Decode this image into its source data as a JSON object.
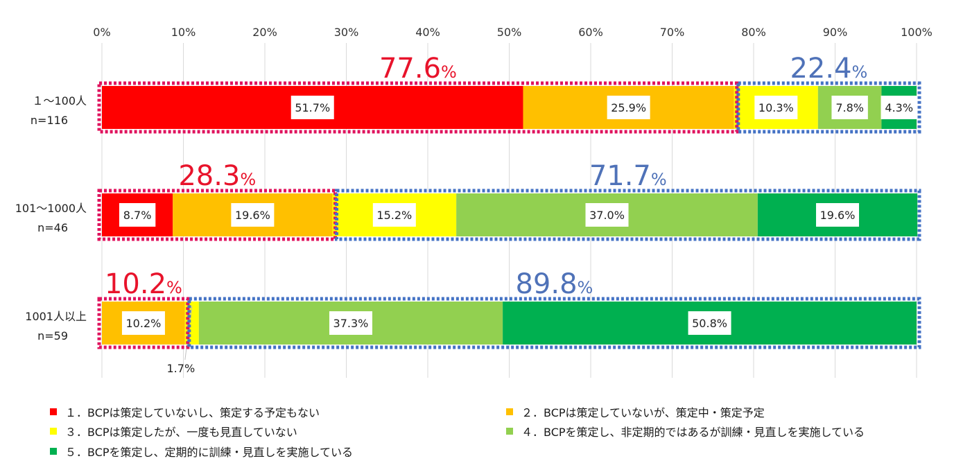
{
  "chart_data": {
    "type": "bar",
    "orientation": "horizontal",
    "stacked": "percent",
    "xlim": [
      0,
      100
    ],
    "x_ticks": [
      "0%",
      "10%",
      "20%",
      "30%",
      "40%",
      "50%",
      "60%",
      "70%",
      "80%",
      "90%",
      "100%"
    ],
    "grid": true,
    "legend_position": "bottom",
    "categories": [
      {
        "label": "１～100人",
        "n": "n=116"
      },
      {
        "label": "101～1000人",
        "n": "n=46"
      },
      {
        "label": "1001人以上",
        "n": "n=59"
      }
    ],
    "series": [
      {
        "name": "１．BCPは策定していないし、策定する予定もない",
        "color": "#ff0000",
        "values": [
          51.7,
          8.7,
          0.0
        ],
        "labels": [
          "51.7%",
          "8.7%",
          ""
        ]
      },
      {
        "name": "２．BCPは策定していないが、策定中・策定予定",
        "color": "#ffc000",
        "values": [
          25.9,
          19.6,
          10.2
        ],
        "labels": [
          "25.9%",
          "19.6%",
          "10.2%"
        ]
      },
      {
        "name": "３．BCPは策定したが、一度も見直していない",
        "color": "#ffff00",
        "values": [
          10.3,
          15.2,
          1.7
        ],
        "labels": [
          "10.3%",
          "15.2%",
          "1.7%"
        ]
      },
      {
        "name": "４．BCPを策定し、非定期的ではあるが訓練・見直しを実施している",
        "color": "#92d050",
        "values": [
          7.8,
          37.0,
          37.3
        ],
        "labels": [
          "7.8%",
          "37.0%",
          "37.3%"
        ]
      },
      {
        "name": "５．BCPを策定し、定期的に訓練・見直しを実施している",
        "color": "#00b050",
        "values": [
          4.3,
          19.6,
          50.8
        ],
        "labels": [
          "4.3%",
          "19.6%",
          "50.8%"
        ]
      }
    ],
    "group_annotations": [
      {
        "left": {
          "value": "77.6",
          "unit": "%",
          "color": "#e8132b"
        },
        "right": {
          "value": "22.4",
          "unit": "%",
          "color": "#4f72b8"
        }
      },
      {
        "left": {
          "value": "28.3",
          "unit": "%",
          "color": "#e8132b"
        },
        "right": {
          "value": "71.7",
          "unit": "%",
          "color": "#4f72b8"
        }
      },
      {
        "left": {
          "value": "10.2",
          "unit": "%",
          "color": "#e8132b"
        },
        "right": {
          "value": "89.8",
          "unit": "%",
          "color": "#4f72b8"
        }
      }
    ],
    "box_colors": {
      "left": "#e0135e",
      "right": "#4472c4"
    }
  }
}
